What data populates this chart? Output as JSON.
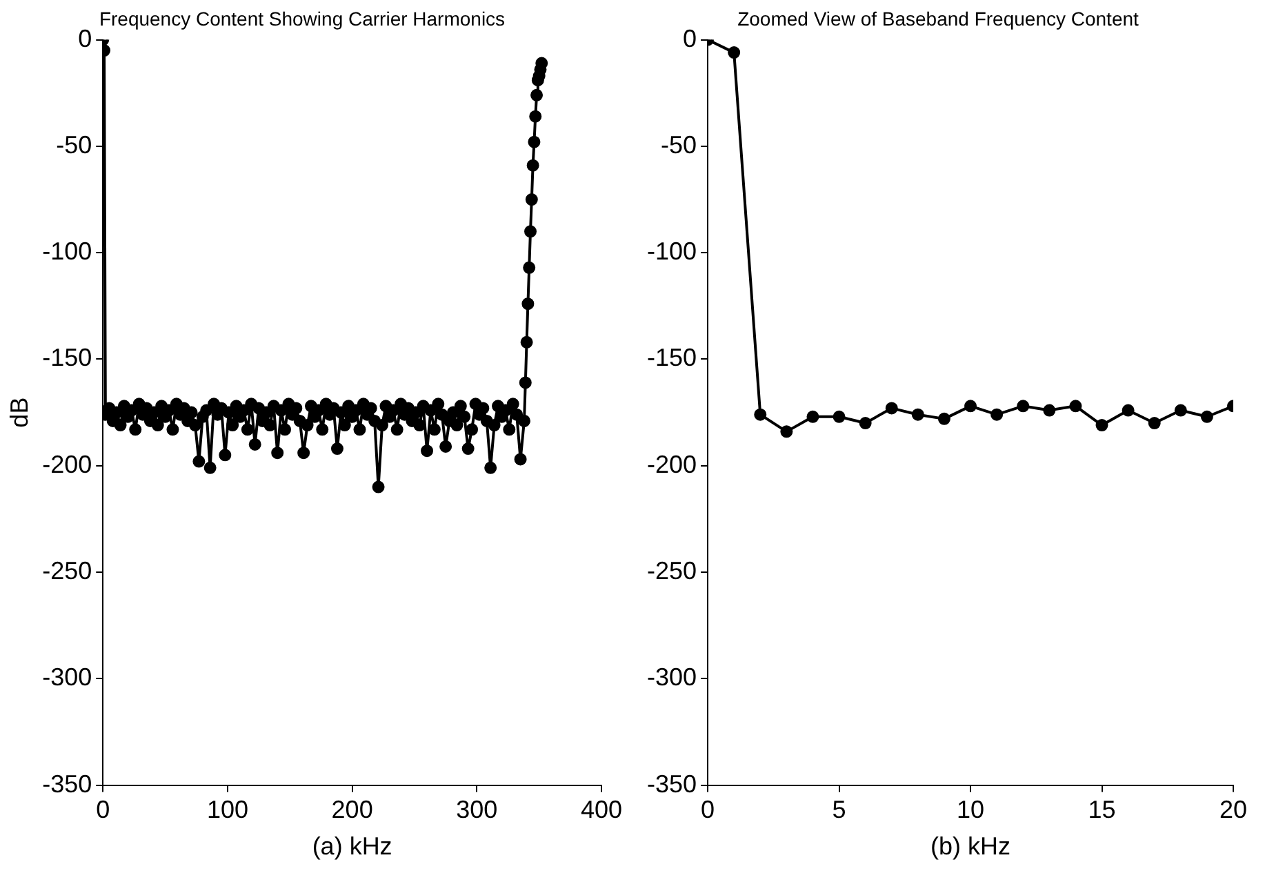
{
  "chart_data": [
    {
      "type": "line",
      "title": "Frequency Content Showing Carrier Harmonics",
      "xlabel": "(a) kHz",
      "ylabel": "dB",
      "xlim": [
        0,
        400
      ],
      "xticks": [
        0,
        100,
        200,
        300,
        400
      ],
      "ylim": [
        -350,
        0
      ],
      "yticks": [
        -350,
        -300,
        -250,
        -200,
        -150,
        -100,
        -50,
        0
      ],
      "grid": false,
      "legend": false,
      "marker": "circle",
      "line_style": "solid",
      "x": [
        0,
        1,
        2,
        5,
        8,
        11,
        14,
        17,
        20,
        23,
        26,
        29,
        32,
        35,
        38,
        41,
        44,
        47,
        50,
        53,
        56,
        59,
        62,
        65,
        68,
        71,
        74,
        77,
        80,
        83,
        86,
        89,
        92,
        95,
        98,
        101,
        104,
        107,
        110,
        113,
        116,
        119,
        122,
        125,
        128,
        131,
        134,
        137,
        140,
        143,
        146,
        149,
        152,
        155,
        158,
        161,
        164,
        167,
        170,
        173,
        176,
        179,
        182,
        185,
        188,
        191,
        194,
        197,
        200,
        203,
        206,
        209,
        212,
        215,
        218,
        221,
        224,
        227,
        230,
        233,
        236,
        239,
        242,
        245,
        248,
        251,
        254,
        257,
        260,
        263,
        266,
        269,
        272,
        275,
        278,
        281,
        284,
        287,
        290,
        293,
        296,
        299,
        302,
        305,
        308,
        311,
        314,
        317,
        320,
        323,
        326,
        329,
        332,
        335,
        338,
        339,
        340,
        341,
        342,
        343,
        344,
        345,
        346,
        347,
        348,
        349,
        350,
        351,
        352
      ],
      "series": [
        {
          "color": "#000000",
          "values": [
            0,
            -5,
            -176,
            -173,
            -179,
            -175,
            -181,
            -172,
            -177,
            -174,
            -183,
            -171,
            -176,
            -173,
            -179,
            -175,
            -181,
            -172,
            -177,
            -174,
            -183,
            -171,
            -176,
            -173,
            -179,
            -175,
            -181,
            -198,
            -177,
            -174,
            -201,
            -171,
            -176,
            -173,
            -195,
            -175,
            -181,
            -172,
            -177,
            -174,
            -183,
            -171,
            -190,
            -173,
            -179,
            -175,
            -181,
            -172,
            -194,
            -174,
            -183,
            -171,
            -176,
            -173,
            -179,
            -194,
            -181,
            -172,
            -177,
            -174,
            -183,
            -171,
            -176,
            -173,
            -192,
            -175,
            -181,
            -172,
            -177,
            -174,
            -183,
            -171,
            -176,
            -173,
            -179,
            -210,
            -181,
            -172,
            -177,
            -174,
            -183,
            -171,
            -176,
            -173,
            -179,
            -175,
            -181,
            -172,
            -193,
            -174,
            -183,
            -171,
            -176,
            -191,
            -179,
            -175,
            -181,
            -172,
            -177,
            -192,
            -183,
            -171,
            -176,
            -173,
            -179,
            -201,
            -181,
            -172,
            -177,
            -174,
            -183,
            -171,
            -176,
            -197,
            -179,
            -161,
            -142,
            -124,
            -107,
            -90,
            -75,
            -59,
            -48,
            -36,
            -26,
            -19,
            -17,
            -14,
            -11
          ]
        }
      ]
    },
    {
      "type": "line",
      "title": "Zoomed View of Baseband Frequency Content",
      "xlabel": "(b) kHz",
      "xlim": [
        0,
        20
      ],
      "xticks": [
        0,
        5,
        10,
        15,
        20
      ],
      "ylim": [
        -350,
        0
      ],
      "yticks": [
        -350,
        -300,
        -250,
        -200,
        -150,
        -100,
        -50,
        0
      ],
      "grid": false,
      "legend": false,
      "marker": "circle",
      "line_style": "solid",
      "x": [
        0,
        1,
        2,
        3,
        4,
        5,
        6,
        7,
        8,
        9,
        10,
        11,
        12,
        13,
        14,
        15,
        16,
        17,
        18,
        19,
        20
      ],
      "series": [
        {
          "color": "#000000",
          "values": [
            0,
            -6,
            -176,
            -184,
            -177,
            -177,
            -180,
            -173,
            -176,
            -178,
            -172,
            -176,
            -172,
            -174,
            -172,
            -181,
            -174,
            -180,
            -174,
            -177,
            -172
          ]
        }
      ]
    }
  ]
}
